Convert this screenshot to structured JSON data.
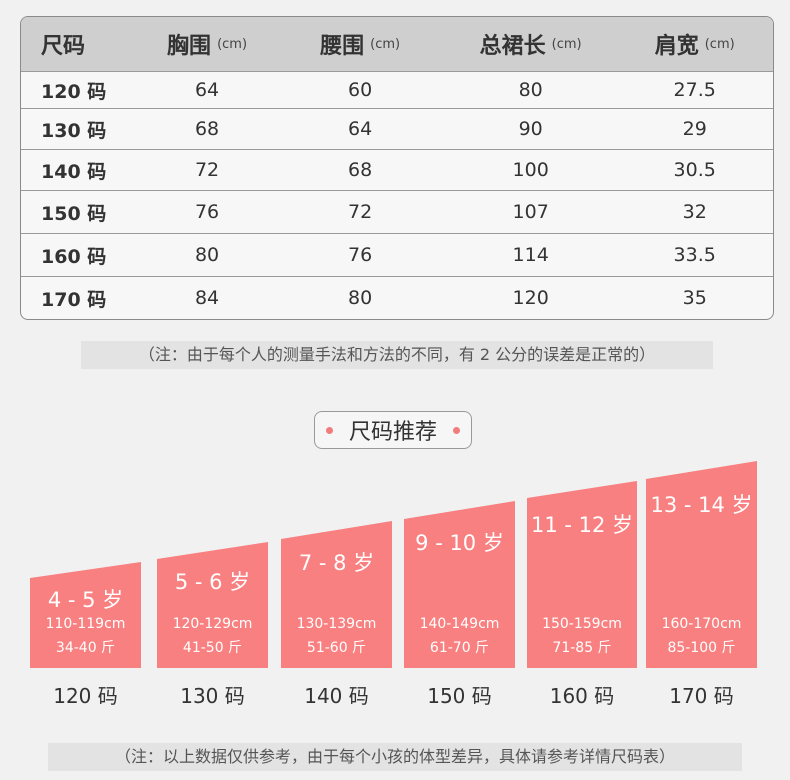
{
  "table": {
    "headers": [
      {
        "label": "尺码",
        "unit": ""
      },
      {
        "label": "胸围",
        "unit": "(cm)"
      },
      {
        "label": "腰围",
        "unit": "(cm)"
      },
      {
        "label": "总裙长",
        "unit": "(cm)"
      },
      {
        "label": "肩宽",
        "unit": "(cm)"
      }
    ],
    "rows": [
      [
        "120 码",
        "64",
        "60",
        "80",
        "27.5"
      ],
      [
        "130 码",
        "68",
        "64",
        "90",
        "29"
      ],
      [
        "140 码",
        "72",
        "68",
        "100",
        "30.5"
      ],
      [
        "150 码",
        "76",
        "72",
        "107",
        "32"
      ],
      [
        "160 码",
        "80",
        "76",
        "114",
        "33.5"
      ],
      [
        "170 码",
        "84",
        "80",
        "120",
        "35"
      ]
    ]
  },
  "note1": "（注：由于每个人的测量手法和方法的不同，有 2 公分的误差是正常的）",
  "section_title": "尺码推荐",
  "recommendations": [
    {
      "age": "4 - 5 岁",
      "height": "110-119cm",
      "weight": "34-40 斤",
      "size": "120 码"
    },
    {
      "age": "5 - 6 岁",
      "height": "120-129cm",
      "weight": "41-50 斤",
      "size": "130 码"
    },
    {
      "age": "7 - 8 岁",
      "height": "130-139cm",
      "weight": "51-60 斤",
      "size": "140 码"
    },
    {
      "age": "9 - 10 岁",
      "height": "140-149cm",
      "weight": "61-70 斤",
      "size": "150 码"
    },
    {
      "age": "11 - 12 岁",
      "height": "150-159cm",
      "weight": "71-85 斤",
      "size": "160 码"
    },
    {
      "age": "13 - 14 岁",
      "height": "160-170cm",
      "weight": "85-100 斤",
      "size": "170 码"
    }
  ],
  "note2": "（注：以上数据仅供参考，由于每个小孩的体型差异，具体请参考详情尺码表）",
  "colors": {
    "bar": "#f98080",
    "header_bg": "#cfcfcf",
    "accent_dot": "#f07c7c"
  }
}
